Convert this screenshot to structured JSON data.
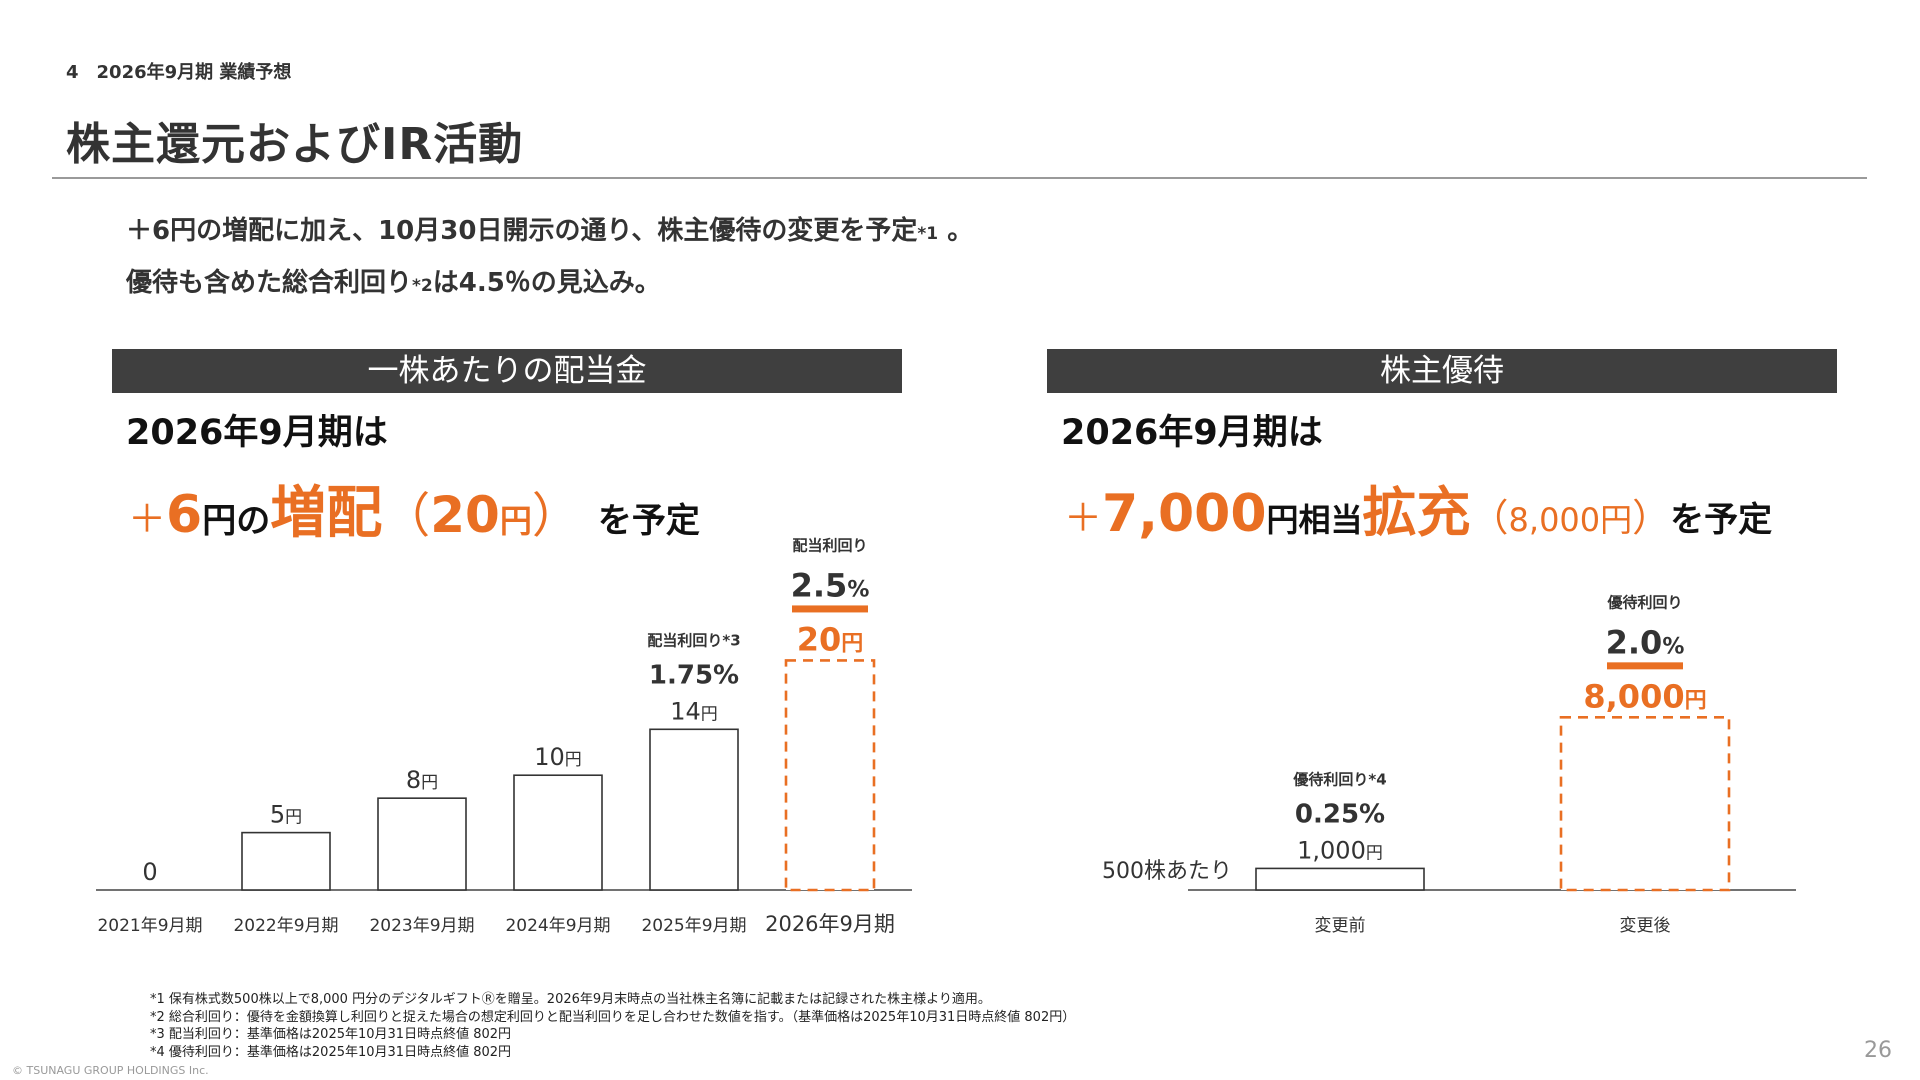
{
  "header": {
    "section_label": "4　2026年9月期 業績予想",
    "title": "株主還元およびIR活動"
  },
  "lead": {
    "line1_text": "＋6円の増配に加え、10月30日開示の通り、株主優待の変更を予定",
    "line1_note": "*1",
    "line1_end": " 。",
    "line2_text": "優待も含めた総合利回り",
    "line2_note": "*2",
    "line2_end": "は4.5％の見込み。"
  },
  "dividend_panel": {
    "header": "一株あたりの配当金",
    "period": "2026年9月期は",
    "headline": {
      "plus": "＋",
      "amount": "6",
      "yen": "円",
      "no": "の",
      "keyword": "増配",
      "paren_open": "（",
      "new_amount": "20",
      "new_yen": "円",
      "paren_close": "）",
      "suffix": "を予定"
    }
  },
  "benefit_panel": {
    "header": "株主優待",
    "period": "2026年9月期は",
    "headline": {
      "plus": "＋",
      "amount": "7,000",
      "yen_equiv": "円相当",
      "keyword": "拡充",
      "paren_open": "（",
      "new_amount": "8,000円",
      "paren_close": "）",
      "suffix": "を予定"
    }
  },
  "chart_data": [
    {
      "type": "bar",
      "categories": [
        "2021年9月期",
        "2022年9月期",
        "2023年9月期",
        "2024年9月期",
        "2025年9月期",
        "2026年9月期"
      ],
      "values": [
        0,
        5,
        8,
        10,
        14,
        20
      ],
      "value_labels": [
        "0",
        "5円",
        "8円",
        "10円",
        "14円",
        "20円"
      ],
      "forecast": [
        false,
        false,
        false,
        false,
        false,
        true
      ],
      "annotations": [
        {
          "index": 4,
          "label": "配当利回り*3",
          "value": "1.75%"
        },
        {
          "index": 5,
          "label": "配当利回り",
          "value": "2.5%"
        }
      ],
      "ylim": [
        0,
        23
      ],
      "colors": {
        "bar": "#ffffff",
        "outline": "#333333",
        "forecast": "#e96f23"
      }
    },
    {
      "type": "bar",
      "categories": [
        "変更前",
        "変更後"
      ],
      "values": [
        1000,
        8000
      ],
      "value_labels": [
        "1,000円",
        "8,000円"
      ],
      "forecast": [
        false,
        true
      ],
      "annotations": [
        {
          "index": 0,
          "label": "優待利回り*4",
          "value": "0.25%"
        },
        {
          "index": 1,
          "label": "優待利回り",
          "value": "2.0%"
        }
      ],
      "ylabel": "500株あたり",
      "ylim": [
        0,
        8850
      ],
      "colors": {
        "bar": "#ffffff",
        "outline": "#333333",
        "forecast": "#e96f23"
      }
    }
  ],
  "footnotes": [
    "*1 保有株式数500株以上で8,000 円分のデジタルギフトⓇを贈呈。2026年9月末時点の当社株主名簿に記載または記録された株主様より適用。",
    "*2 総合利回り：優待を金額換算し利回りと捉えた場合の想定利回りと配当利回りを足し合わせた数値を指す。（基準価格は2025年10月31日時点終値 802円）",
    "*3 配当利回り：基準価格は2025年10月31日時点終値 802円",
    "*4 優待利回り：基準価格は2025年10月31日時点終値 802円"
  ],
  "page_number": "26",
  "copyright": "© TSUNAGU GROUP HOLDINGS Inc."
}
